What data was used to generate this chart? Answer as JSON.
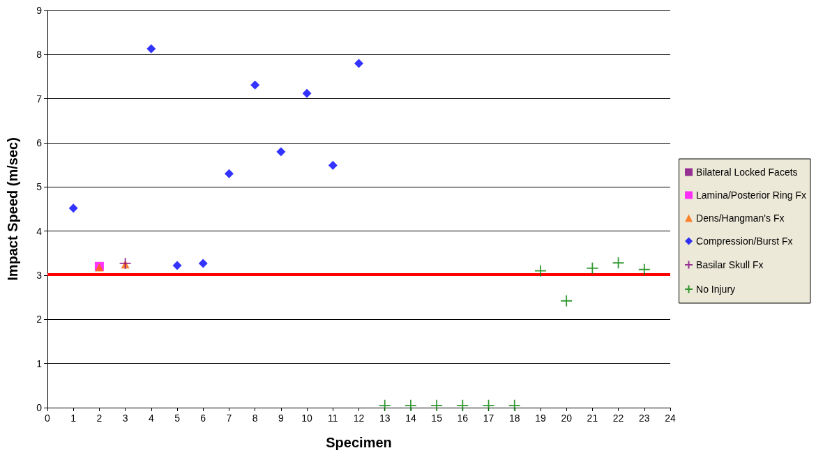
{
  "chart_data": {
    "type": "scatter",
    "xlabel": "Specimen",
    "ylabel": "Impact Speed (m/sec)",
    "xlim": [
      0,
      24
    ],
    "xticks": [
      0,
      1,
      2,
      3,
      4,
      5,
      6,
      7,
      8,
      9,
      10,
      11,
      12,
      13,
      14,
      15,
      16,
      17,
      18,
      19,
      20,
      21,
      22,
      23,
      24
    ],
    "ylim": [
      0,
      9
    ],
    "yticks": [
      0,
      1,
      2,
      3,
      4,
      5,
      6,
      7,
      8,
      9
    ],
    "grid": "y",
    "legend": "right",
    "ref_lines": [
      {
        "axis": "y",
        "value": 3.02,
        "color": "#ff0000"
      }
    ],
    "series": [
      {
        "name": "Bilateral Locked Facets",
        "color": "#800080",
        "marker": "square"
      },
      {
        "name": "Lamina/Posterior Ring Fx",
        "color": "#ff00ff",
        "marker": "square",
        "x": [
          2
        ],
        "values": [
          3.2
        ]
      },
      {
        "name": "Dens/Hangman's Fx",
        "color": "#ff6600",
        "marker": "triangle",
        "x": [
          2,
          3
        ],
        "values": [
          3.18,
          3.25
        ]
      },
      {
        "name": "Compression/Burst Fx",
        "color": "#0000ff",
        "marker": "diamond",
        "x": [
          1,
          4,
          5,
          6,
          7,
          8,
          9,
          10,
          11,
          12
        ],
        "values": [
          4.52,
          8.13,
          3.22,
          3.27,
          5.3,
          7.31,
          5.8,
          7.12,
          5.49,
          7.8
        ]
      },
      {
        "name": "Basilar Skull Fx",
        "color": "#800080",
        "marker": "cross",
        "x": [
          3
        ],
        "values": [
          3.27
        ]
      },
      {
        "name": "No Injury",
        "color": "#008000",
        "marker": "cross",
        "x": [
          13,
          14,
          15,
          16,
          17,
          18,
          19,
          20,
          21,
          22,
          23
        ],
        "values": [
          0.05,
          0.05,
          0.05,
          0.05,
          0.05,
          0.05,
          3.1,
          2.42,
          3.16,
          3.28,
          3.13
        ]
      }
    ]
  }
}
